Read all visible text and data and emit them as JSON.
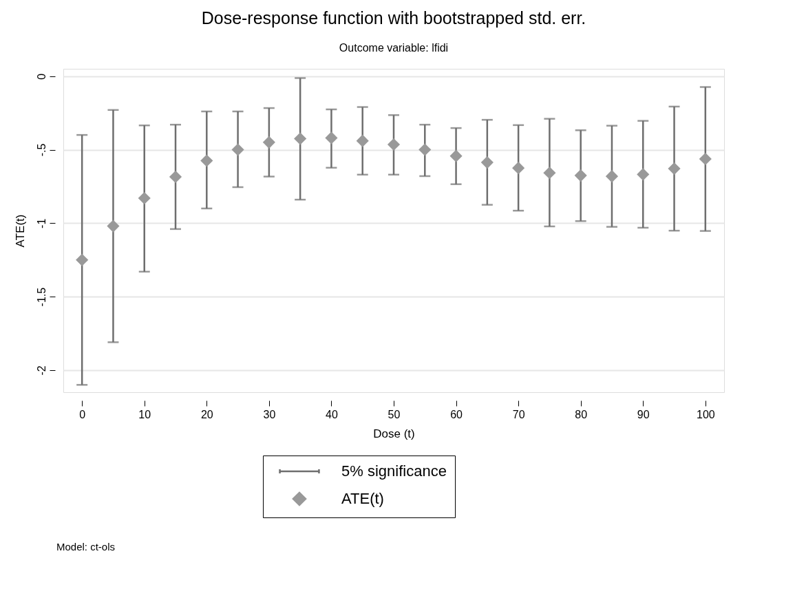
{
  "chart_data": {
    "type": "scatter",
    "title": "Dose-response function with bootstrapped std. err.",
    "subtitle": "Outcome variable: lfidi",
    "xlabel": "Dose (t)",
    "ylabel": "ATE(t)",
    "x": [
      0,
      5,
      10,
      15,
      20,
      25,
      30,
      35,
      40,
      45,
      50,
      55,
      60,
      65,
      70,
      75,
      80,
      85,
      90,
      95,
      100
    ],
    "series": [
      {
        "name": "ATE(t)",
        "color": "#999999",
        "values": [
          -1.25,
          -1.02,
          -0.83,
          -0.685,
          -0.575,
          -0.5,
          -0.45,
          -0.425,
          -0.42,
          -0.44,
          -0.465,
          -0.5,
          -0.543,
          -0.587,
          -0.625,
          -0.658,
          -0.676,
          -0.681,
          -0.668,
          -0.629,
          -0.563
        ],
        "errors": [
          [
            -2.1,
            -0.4
          ],
          [
            -1.81,
            -0.23
          ],
          [
            -1.33,
            -0.335
          ],
          [
            -1.04,
            -0.33
          ],
          [
            -0.9,
            -0.24
          ],
          [
            -0.755,
            -0.24
          ],
          [
            -0.683,
            -0.217
          ],
          [
            -0.84,
            -0.013
          ],
          [
            -0.623,
            -0.226
          ],
          [
            -0.67,
            -0.21
          ],
          [
            -0.67,
            -0.265
          ],
          [
            -0.68,
            -0.33
          ],
          [
            -0.735,
            -0.353
          ],
          [
            -0.875,
            -0.297
          ],
          [
            -0.915,
            -0.333
          ],
          [
            -1.022,
            -0.29
          ],
          [
            -0.986,
            -0.368
          ],
          [
            -1.025,
            -0.337
          ],
          [
            -1.031,
            -0.304
          ],
          [
            -1.051,
            -0.207
          ],
          [
            -1.053,
            -0.074
          ]
        ]
      }
    ],
    "marker": "diamond",
    "xlim": [
      -3,
      103
    ],
    "xticks": [
      0,
      10,
      20,
      30,
      40,
      50,
      60,
      70,
      80,
      90,
      100
    ],
    "ylim": [
      -2.15,
      0.05
    ],
    "yticks": [
      -2,
      {
        "value": -1.5,
        "label": "-1.5"
      },
      -1,
      {
        "value": -0.5,
        "label": "-.5"
      },
      0
    ],
    "grid": "y",
    "legend": "bottom",
    "annotations": [
      "5% significance",
      "Model: ct-ols"
    ]
  }
}
